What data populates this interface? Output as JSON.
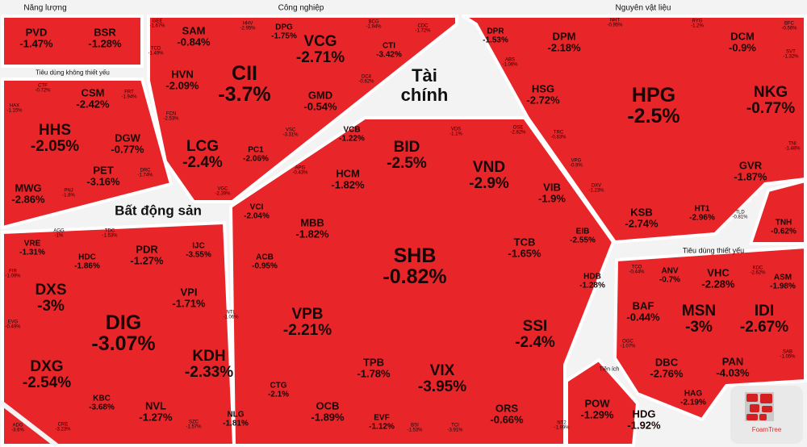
{
  "groups": {
    "energy": "Năng lượng",
    "industrial": "Công nghiệp",
    "materials": "Nguyên vật liệu",
    "consumer_discretionary": "Tiêu dùng không thiết yếu",
    "real_estate": "Bất động sản",
    "financials": "Tài chính",
    "consumer_staples": "Tiêu dùng thiết yếu",
    "utilities": "Tiện ích"
  },
  "brand": {
    "logo_text": "FoamTree"
  },
  "colors": {
    "cell": "#e8262a",
    "separator": "#ffffff",
    "background": "#f3f3f3"
  },
  "stocks": [
    {
      "t": "PVD",
      "c": "-1.47%"
    },
    {
      "t": "BSR",
      "c": "-1.28%"
    },
    {
      "t": "CTF",
      "c": "-0.72%"
    },
    {
      "t": "CSM",
      "c": "-2.42%"
    },
    {
      "t": "FRT",
      "c": "-1.94%"
    },
    {
      "t": "HAX",
      "c": "-1.15%"
    },
    {
      "t": "HHS",
      "c": "-2.05%"
    },
    {
      "t": "DGW",
      "c": "-0.77%"
    },
    {
      "t": "PET",
      "c": "-3.16%"
    },
    {
      "t": "DRC",
      "c": "-1.74%"
    },
    {
      "t": "MWG",
      "c": "-2.86%"
    },
    {
      "t": "PNJ",
      "c": "-1.8%"
    },
    {
      "t": "GEE",
      "c": "-1.67%"
    },
    {
      "t": "SAM",
      "c": "-0.84%"
    },
    {
      "t": "HHV",
      "c": "-2.95%"
    },
    {
      "t": "DPG",
      "c": "-1.75%"
    },
    {
      "t": "VCG",
      "c": "-2.71%"
    },
    {
      "t": "BCG",
      "c": "-1.94%"
    },
    {
      "t": "CTI",
      "c": "-3.42%"
    },
    {
      "t": "CDC",
      "c": "-1.72%"
    },
    {
      "t": "TCD",
      "c": "-1.49%"
    },
    {
      "t": "HVN",
      "c": "-2.09%"
    },
    {
      "t": "CII",
      "c": "-3.7%"
    },
    {
      "t": "GMD",
      "c": "-0.54%"
    },
    {
      "t": "DC4",
      "c": "-0.62%"
    },
    {
      "t": "FCN",
      "c": "-2.53%"
    },
    {
      "t": "VSC",
      "c": "-3.31%"
    },
    {
      "t": "LCG",
      "c": "-2.4%"
    },
    {
      "t": "PC1",
      "c": "-2.06%"
    },
    {
      "t": "VGC",
      "c": "-2.39%"
    },
    {
      "t": "VCB",
      "c": "-1.22%"
    },
    {
      "t": "VDS",
      "c": "-1.1%"
    },
    {
      "t": "OSE",
      "c": "-2.82%"
    },
    {
      "t": "BID",
      "c": "-2.5%"
    },
    {
      "t": "VND",
      "c": "-2.9%"
    },
    {
      "t": "APG",
      "c": "-0.43%"
    },
    {
      "t": "HCM",
      "c": "-1.82%"
    },
    {
      "t": "VIB",
      "c": "-1.9%"
    },
    {
      "t": "VCI",
      "c": "-2.04%"
    },
    {
      "t": "MBB",
      "c": "-1.82%"
    },
    {
      "t": "EIB",
      "c": "-2.55%"
    },
    {
      "t": "ACB",
      "c": "-0.95%"
    },
    {
      "t": "SHB",
      "c": "-0.82%"
    },
    {
      "t": "TCB",
      "c": "-1.65%"
    },
    {
      "t": "HDB",
      "c": "-1.28%"
    },
    {
      "t": "VPB",
      "c": "-2.21%"
    },
    {
      "t": "SSI",
      "c": "-2.4%"
    },
    {
      "t": "TPB",
      "c": "-1.78%"
    },
    {
      "t": "VIX",
      "c": "-3.95%"
    },
    {
      "t": "CTG",
      "c": "-2.1%"
    },
    {
      "t": "OCB",
      "c": "-1.89%"
    },
    {
      "t": "EVF",
      "c": "-1.12%"
    },
    {
      "t": "BSI",
      "c": "-1.53%"
    },
    {
      "t": "TCI",
      "c": "-3.91%"
    },
    {
      "t": "ORS",
      "c": "-0.66%"
    },
    {
      "t": "DPR",
      "c": "-1.53%"
    },
    {
      "t": "DPM",
      "c": "-2.18%"
    },
    {
      "t": "NHT",
      "c": "-0.95%"
    },
    {
      "t": "RYG",
      "c": "-1.2%"
    },
    {
      "t": "DCM",
      "c": "-0.9%"
    },
    {
      "t": "BFC",
      "c": "-0.56%"
    },
    {
      "t": "SVT",
      "c": "-1.32%"
    },
    {
      "t": "ABS",
      "c": "-1.06%"
    },
    {
      "t": "HSG",
      "c": "-2.72%"
    },
    {
      "t": "HPG",
      "c": "-2.5%"
    },
    {
      "t": "NKG",
      "c": "-0.77%"
    },
    {
      "t": "TRC",
      "c": "-0.83%"
    },
    {
      "t": "VPG",
      "c": "-0.9%"
    },
    {
      "t": "TNI",
      "c": "-1.48%"
    },
    {
      "t": "GVR",
      "c": "-1.87%"
    },
    {
      "t": "DXV",
      "c": "-1.23%"
    },
    {
      "t": "KSB",
      "c": "-2.74%"
    },
    {
      "t": "HT1",
      "c": "-2.96%"
    },
    {
      "t": "TLD",
      "c": "-0.81%"
    },
    {
      "t": "TNH",
      "c": "-0.62%"
    },
    {
      "t": "VRE",
      "c": "-1.31%"
    },
    {
      "t": "AGG",
      "c": "-1%"
    },
    {
      "t": "TDC",
      "c": "-1.53%"
    },
    {
      "t": "HDC",
      "c": "-1.86%"
    },
    {
      "t": "PDR",
      "c": "-1.27%"
    },
    {
      "t": "IJC",
      "c": "-3.55%"
    },
    {
      "t": "FIR",
      "c": "-1.09%"
    },
    {
      "t": "DXS",
      "c": "-3%"
    },
    {
      "t": "VPI",
      "c": "-1.71%"
    },
    {
      "t": "EVG",
      "c": "-0.49%"
    },
    {
      "t": "NTL",
      "c": "-1.06%"
    },
    {
      "t": "DIG",
      "c": "-3.07%"
    },
    {
      "t": "DXG",
      "c": "-2.54%"
    },
    {
      "t": "KDH",
      "c": "-2.33%"
    },
    {
      "t": "KBC",
      "c": "-3.68%"
    },
    {
      "t": "NVL",
      "c": "-1.27%"
    },
    {
      "t": "NLG",
      "c": "-1.81%"
    },
    {
      "t": "SZC",
      "c": "-1.57%"
    },
    {
      "t": "ADG",
      "c": "-3.6%"
    },
    {
      "t": "CRE",
      "c": "-3.23%"
    },
    {
      "t": "TCO",
      "c": "-0.44%"
    },
    {
      "t": "ANV",
      "c": "-0.7%"
    },
    {
      "t": "VHC",
      "c": "-2.28%"
    },
    {
      "t": "KDC",
      "c": "-2.62%"
    },
    {
      "t": "ASM",
      "c": "-1.98%"
    },
    {
      "t": "BAF",
      "c": "-0.44%"
    },
    {
      "t": "MSN",
      "c": "-3%"
    },
    {
      "t": "IDI",
      "c": "-2.67%"
    },
    {
      "t": "OGC",
      "c": "-1.07%"
    },
    {
      "t": "SAB",
      "c": "-1.05%"
    },
    {
      "t": "DBC",
      "c": "-2.76%"
    },
    {
      "t": "PAN",
      "c": "-4.03%"
    },
    {
      "t": "HAG",
      "c": "-2.19%"
    },
    {
      "t": "POW",
      "c": "-1.29%"
    },
    {
      "t": "HDG",
      "c": "-1.92%"
    },
    {
      "t": "NT2",
      "c": "-1.99%"
    }
  ]
}
